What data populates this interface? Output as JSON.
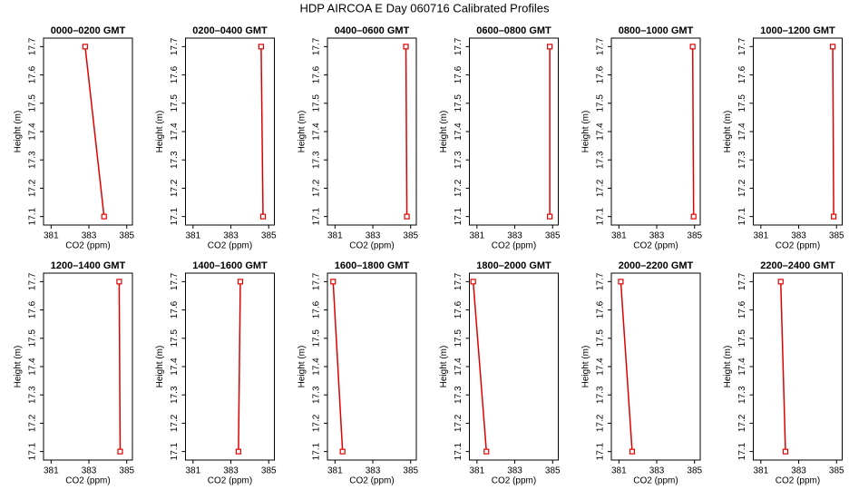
{
  "title": "HDP AIRCOA E  Day 060716  Calibrated Profiles",
  "chart_data": [
    {
      "type": "line",
      "title": "0000–0200 GMT",
      "xlabel": "CO2 (ppm)",
      "ylabel": "Height (m)",
      "x": [
        382.8,
        383.8
      ],
      "values": [
        17.7,
        17.1
      ],
      "color": "#e00000",
      "xlim": [
        380.6,
        385.3
      ],
      "ylim": [
        17.07,
        17.73
      ],
      "xticks": [
        381,
        383,
        385
      ],
      "yticks": [
        17.1,
        17.2,
        17.3,
        17.4,
        17.5,
        17.6,
        17.7
      ]
    },
    {
      "type": "line",
      "title": "0200–0400 GMT",
      "xlabel": "CO2 (ppm)",
      "ylabel": "Height (m)",
      "x": [
        384.6,
        384.7
      ],
      "values": [
        17.7,
        17.1
      ],
      "color": "#e00000",
      "xlim": [
        380.6,
        385.3
      ],
      "ylim": [
        17.07,
        17.73
      ],
      "xticks": [
        381,
        383,
        385
      ],
      "yticks": [
        17.1,
        17.2,
        17.3,
        17.4,
        17.5,
        17.6,
        17.7
      ]
    },
    {
      "type": "line",
      "title": "0400–0600 GMT",
      "xlabel": "CO2 (ppm)",
      "ylabel": "Height (m)",
      "x": [
        384.75,
        384.8
      ],
      "values": [
        17.7,
        17.1
      ],
      "color": "#e00000",
      "xlim": [
        380.6,
        385.3
      ],
      "ylim": [
        17.07,
        17.73
      ],
      "xticks": [
        381,
        383,
        385
      ],
      "yticks": [
        17.1,
        17.2,
        17.3,
        17.4,
        17.5,
        17.6,
        17.7
      ]
    },
    {
      "type": "line",
      "title": "0600–0800 GMT",
      "xlabel": "CO2 (ppm)",
      "ylabel": "Height (m)",
      "x": [
        384.85,
        384.85
      ],
      "values": [
        17.7,
        17.1
      ],
      "color": "#e00000",
      "xlim": [
        380.6,
        385.3
      ],
      "ylim": [
        17.07,
        17.73
      ],
      "xticks": [
        381,
        383,
        385
      ],
      "yticks": [
        17.1,
        17.2,
        17.3,
        17.4,
        17.5,
        17.6,
        17.7
      ]
    },
    {
      "type": "line",
      "title": "0800–1000 GMT",
      "xlabel": "CO2 (ppm)",
      "ylabel": "Height (m)",
      "x": [
        384.9,
        384.95
      ],
      "values": [
        17.7,
        17.1
      ],
      "color": "#e00000",
      "xlim": [
        380.6,
        385.3
      ],
      "ylim": [
        17.07,
        17.73
      ],
      "xticks": [
        381,
        383,
        385
      ],
      "yticks": [
        17.1,
        17.2,
        17.3,
        17.4,
        17.5,
        17.6,
        17.7
      ]
    },
    {
      "type": "line",
      "title": "1000–1200 GMT",
      "xlabel": "CO2 (ppm)",
      "ylabel": "Height (m)",
      "x": [
        384.8,
        384.85
      ],
      "values": [
        17.7,
        17.1
      ],
      "color": "#e00000",
      "xlim": [
        380.6,
        385.3
      ],
      "ylim": [
        17.07,
        17.73
      ],
      "xticks": [
        381,
        383,
        385
      ],
      "yticks": [
        17.1,
        17.2,
        17.3,
        17.4,
        17.5,
        17.6,
        17.7
      ]
    },
    {
      "type": "line",
      "title": "1200–1400 GMT",
      "xlabel": "CO2 (ppm)",
      "ylabel": "Height (m)",
      "x": [
        384.6,
        384.65
      ],
      "values": [
        17.7,
        17.1
      ],
      "color": "#e00000",
      "xlim": [
        380.6,
        385.3
      ],
      "ylim": [
        17.07,
        17.73
      ],
      "xticks": [
        381,
        383,
        385
      ],
      "yticks": [
        17.1,
        17.2,
        17.3,
        17.4,
        17.5,
        17.6,
        17.7
      ]
    },
    {
      "type": "line",
      "title": "1400–1600 GMT",
      "xlabel": "CO2 (ppm)",
      "ylabel": "Height (m)",
      "x": [
        383.5,
        383.4
      ],
      "values": [
        17.7,
        17.1
      ],
      "color": "#e00000",
      "xlim": [
        380.6,
        385.3
      ],
      "ylim": [
        17.07,
        17.73
      ],
      "xticks": [
        381,
        383,
        385
      ],
      "yticks": [
        17.1,
        17.2,
        17.3,
        17.4,
        17.5,
        17.6,
        17.7
      ]
    },
    {
      "type": "line",
      "title": "1600–1800 GMT",
      "xlabel": "CO2 (ppm)",
      "ylabel": "Height (m)",
      "x": [
        380.9,
        381.4
      ],
      "values": [
        17.7,
        17.1
      ],
      "color": "#e00000",
      "xlim": [
        380.6,
        385.3
      ],
      "ylim": [
        17.07,
        17.73
      ],
      "xticks": [
        381,
        383,
        385
      ],
      "yticks": [
        17.1,
        17.2,
        17.3,
        17.4,
        17.5,
        17.6,
        17.7
      ]
    },
    {
      "type": "line",
      "title": "1800–2000 GMT",
      "xlabel": "CO2 (ppm)",
      "ylabel": "Height (m)",
      "x": [
        380.8,
        381.5
      ],
      "values": [
        17.7,
        17.1
      ],
      "color": "#e00000",
      "xlim": [
        380.6,
        385.3
      ],
      "ylim": [
        17.07,
        17.73
      ],
      "xticks": [
        381,
        383,
        385
      ],
      "yticks": [
        17.1,
        17.2,
        17.3,
        17.4,
        17.5,
        17.6,
        17.7
      ]
    },
    {
      "type": "line",
      "title": "2000–2200 GMT",
      "xlabel": "CO2 (ppm)",
      "ylabel": "Height (m)",
      "x": [
        381.1,
        381.7
      ],
      "values": [
        17.7,
        17.1
      ],
      "color": "#e00000",
      "xlim": [
        380.6,
        385.3
      ],
      "ylim": [
        17.07,
        17.73
      ],
      "xticks": [
        381,
        383,
        385
      ],
      "yticks": [
        17.1,
        17.2,
        17.3,
        17.4,
        17.5,
        17.6,
        17.7
      ]
    },
    {
      "type": "line",
      "title": "2200–2400 GMT",
      "xlabel": "CO2 (ppm)",
      "ylabel": "Height (m)",
      "x": [
        382.05,
        382.3
      ],
      "values": [
        17.7,
        17.1
      ],
      "color": "#e00000",
      "xlim": [
        380.6,
        385.3
      ],
      "ylim": [
        17.07,
        17.73
      ],
      "xticks": [
        381,
        383,
        385
      ],
      "yticks": [
        17.1,
        17.2,
        17.3,
        17.4,
        17.5,
        17.6,
        17.7
      ]
    }
  ]
}
